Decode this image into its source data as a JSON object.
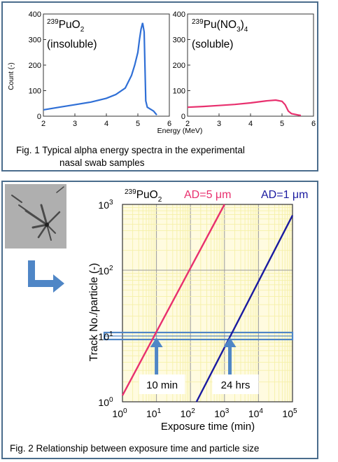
{
  "fig1": {
    "caption_line1": "Fig. 1  Typical alpha energy spectra in the experimental",
    "caption_line2": "nasal swab samples",
    "xlabel": "Energy (MeV)",
    "ylabel": "Count (-)",
    "colors": {
      "left": "#2f6fd6",
      "right": "#e8306e"
    },
    "chart_data": [
      {
        "type": "line",
        "label_sup": "239",
        "label_main": "PuO",
        "label_sub": "2",
        "label_line2": "(insoluble)",
        "xlim": [
          2,
          6
        ],
        "ylim": [
          0,
          400
        ],
        "xticks": [
          "2",
          "3",
          "4",
          "5",
          "6"
        ],
        "yticks": [
          "0",
          "100",
          "200",
          "300",
          "400"
        ],
        "series": [
          {
            "x": [
              2.0,
              2.5,
              3.0,
              3.5,
              4.0,
              4.3,
              4.6,
              4.8,
              4.9,
              5.0,
              5.05,
              5.1,
              5.15,
              5.2,
              5.25,
              5.3,
              5.5,
              5.6
            ],
            "y": [
              25,
              35,
              45,
              55,
              70,
              85,
              110,
              160,
              200,
              250,
              300,
              340,
              365,
              330,
              60,
              35,
              20,
              5
            ]
          }
        ]
      },
      {
        "type": "line",
        "label_sup": "239",
        "label_main": "Pu(NO",
        "label_sub": "3",
        "label_close": ")",
        "label_sub2": "4",
        "label_line2": "(soluble)",
        "xlim": [
          2,
          6
        ],
        "ylim": [
          0,
          400
        ],
        "xticks": [
          "2",
          "3",
          "4",
          "5",
          "6"
        ],
        "yticks": [
          "0",
          "100",
          "200",
          "300",
          "400"
        ],
        "series": [
          {
            "x": [
              2.0,
              2.5,
              3.0,
              3.5,
              4.0,
              4.5,
              4.8,
              5.0,
              5.1,
              5.2,
              5.3,
              5.5,
              5.6
            ],
            "y": [
              35,
              38,
              42,
              46,
              52,
              60,
              63,
              58,
              45,
              20,
              10,
              5,
              3
            ]
          }
        ]
      }
    ]
  },
  "fig2": {
    "caption": "Fig. 2  Relationship between exposure time and particle size",
    "colors": {
      "ad5": "#e8306e",
      "ad1": "#1a1aa0",
      "grid": "#f5f0a8",
      "hline": "#4f86c6"
    },
    "chart_data": {
      "type": "line",
      "log_x": true,
      "log_y": true,
      "xlim": [
        1,
        100000
      ],
      "ylim": [
        1,
        1000
      ],
      "xlabel": "Exposure time (min)",
      "ylabel": "Track No./particle (-)",
      "title_sup": "239",
      "title_main": "PuO",
      "title_sub": "2",
      "xticks": [
        {
          "base": "10",
          "exp": "0"
        },
        {
          "base": "10",
          "exp": "1"
        },
        {
          "base": "10",
          "exp": "2"
        },
        {
          "base": "10",
          "exp": "3"
        },
        {
          "base": "10",
          "exp": "4"
        },
        {
          "base": "10",
          "exp": "5"
        }
      ],
      "yticks": [
        {
          "base": "10",
          "exp": "0"
        },
        {
          "base": "10",
          "exp": "1"
        },
        {
          "base": "10",
          "exp": "2"
        },
        {
          "base": "10",
          "exp": "3"
        }
      ],
      "series": [
        {
          "name": "AD=5 μm",
          "x": [
            1,
            1000
          ],
          "y": [
            1.25,
            1000
          ]
        },
        {
          "name": "AD=1 μm",
          "x": [
            150,
            100000
          ],
          "y": [
            1,
            680
          ]
        }
      ],
      "reference_y": 10,
      "annotations": [
        {
          "text": "10 min",
          "x": 10
        },
        {
          "text": "24 hrs",
          "x": 1440
        }
      ]
    }
  }
}
